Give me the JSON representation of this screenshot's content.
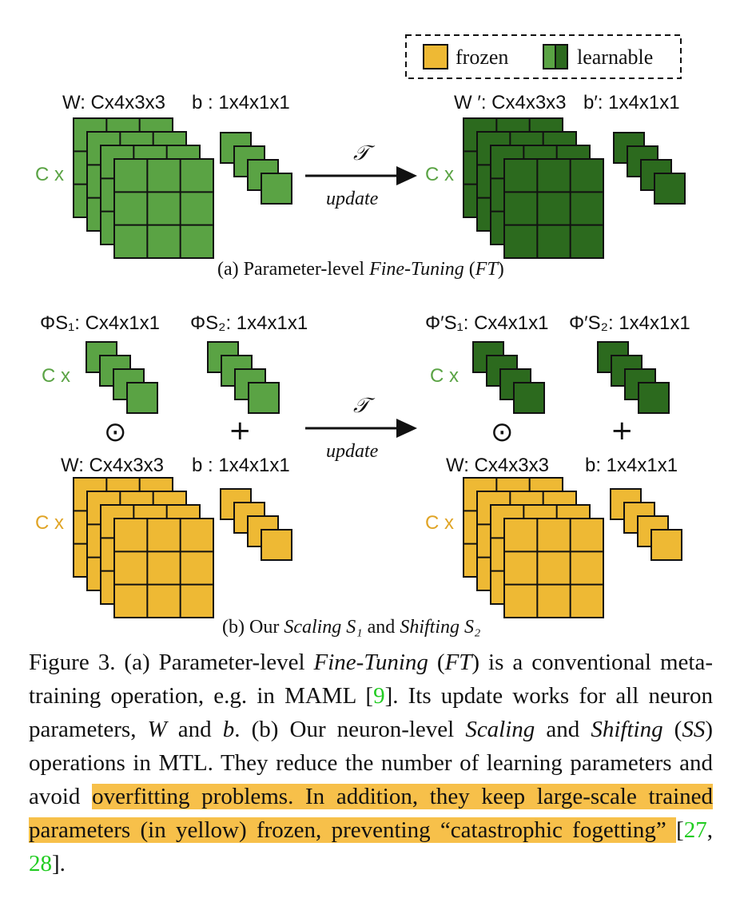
{
  "legend": {
    "frozen_label": "frozen",
    "learnable_label": "learnable"
  },
  "colors": {
    "frozen": "#eeb934",
    "learnable_light": "#5aa344",
    "learnable_dark": "#2c6a1e",
    "c_multiplier_green": "#5aa344",
    "c_multiplier_yellow": "#e0a425",
    "highlight": "#f7c04a",
    "citation": "#22cc22"
  },
  "panel_a": {
    "w_label": "W: Cx4x3x3",
    "b_label": "b : 1x4x1x1",
    "w_prime_label": "W ′: Cx4x3x3",
    "b_prime_label": "b′: 1x4x1x1",
    "c_mult_left": "C x",
    "c_mult_right": "C x",
    "arrow_symbol": "𝒯",
    "arrow_text": "update",
    "subcaption_prefix": "(a) Parameter-level ",
    "subcaption_italic1": "Fine-Tuning",
    "subcaption_mid": " (",
    "subcaption_italic2": "FT",
    "subcaption_suffix": ")"
  },
  "panel_b": {
    "phi_s1_label": "ΦS₁: Cx4x1x1",
    "phi_s2_label": "ΦS₂: 1x4x1x1",
    "phi_s1_prime_label": "Φ′S₁: Cx4x1x1",
    "phi_s2_prime_label": "Φ′S₂: 1x4x1x1",
    "w_label": "W: Cx4x3x3",
    "b_label": "b : 1x4x1x1",
    "w_label_right": "W: Cx4x3x3",
    "b_label_right": "b: 1x4x1x1",
    "c_mult_phi_left": "C x",
    "c_mult_phi_right": "C x",
    "c_mult_w_left": "C x",
    "c_mult_w_right": "C x",
    "odot": "⊙",
    "plus": "+",
    "arrow_symbol": "𝒯",
    "arrow_text": "update",
    "subcaption_prefix": "(b) Our ",
    "subcaption_italic1": "Scaling S₁",
    "subcaption_mid": " and ",
    "subcaption_italic2": "Shifting S₂"
  },
  "caption": {
    "p1": "Figure 3. (a) Parameter-level ",
    "p1_i": "Fine-Tuning",
    "p2": " (",
    "p2_i": "FT",
    "p3": ") is a conventional meta-training operation, e.g. in MAML [",
    "cite1": "9",
    "p4": "]. Its update works for all neuron parameters, ",
    "p4_i1": "W",
    "p5": " and ",
    "p5_i": "b",
    "p6": ". (b) Our neuron-level ",
    "p6_i": "Scaling",
    "p7": " and ",
    "p7_i": "Shifting",
    "p8": " (",
    "p8_i": "SS",
    "p9": ") operations in MTL. They reduce the number of learning parameters and avoid ",
    "hl_text": "overfitting problems. In addition, they keep large-scale trained parameters (in yellow) frozen, preventing “catastrophic fogetting” ",
    "p10": "[",
    "cite2": "27",
    "p11": ", ",
    "cite3": "28",
    "p12": "]."
  }
}
